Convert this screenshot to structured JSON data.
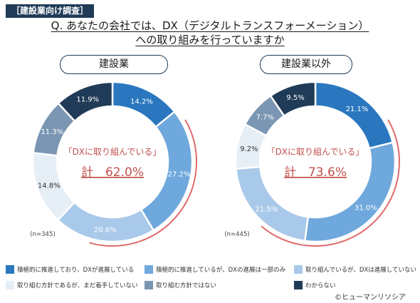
{
  "header": {
    "tag": "［建設業向け調査］",
    "question_line1": "Q. あなたの会社では、DX（デジタルトランスフォーメーション）",
    "question_line2": "への取り組みを行っていますか"
  },
  "chart_data": [
    {
      "type": "donut",
      "title": "建設業",
      "n_label": "(n=345)",
      "center_label": "「DXに取り組んでいる」",
      "center_total": "計　62.0%",
      "categories": [
        "積極的に推進しており、DXが進展している",
        "積極的に推進しているが、DXの進展は一部のみ",
        "取り組んでいるが、DXは進展していない",
        "取り組む方針であるが、まだ着手していない",
        "取り組む方針ではない",
        "わからない"
      ],
      "values": [
        14.2,
        27.2,
        20.6,
        14.8,
        11.3,
        11.9
      ],
      "value_labels": [
        "14.2%",
        "27.2%",
        "20.6%",
        "14.8%",
        "11.3%",
        "11.9%"
      ]
    },
    {
      "type": "donut",
      "title": "建設業以外",
      "n_label": "(n=445)",
      "center_label": "「DXに取り組んでいる」",
      "center_total": "計　73.6%",
      "categories": [
        "積極的に推進しており、DXが進展している",
        "積極的に推進しているが、DXの進展は一部のみ",
        "取り組んでいるが、DXは進展していない",
        "取り組む方針であるが、まだ着手していない",
        "取り組む方針ではない",
        "わからない"
      ],
      "values": [
        21.1,
        31.0,
        21.5,
        9.2,
        7.7,
        9.5
      ],
      "value_labels": [
        "21.1%",
        "31.0%",
        "21.5%",
        "9.2%",
        "7.7%",
        "9.5%"
      ]
    }
  ],
  "legend": [
    {
      "label": "積極的に推進しており、DXが進展している",
      "color": "#2a77bf"
    },
    {
      "label": "積極的に推進しているが、DXの進展は一部のみ",
      "color": "#6fa8dc"
    },
    {
      "label": "取り組んでいるが、DXは進展していない",
      "color": "#a9c9ea"
    },
    {
      "label": "取り組む方針であるが、まだ着手していない",
      "color": "#e6eef6"
    },
    {
      "label": "取り組む方針ではない",
      "color": "#7a96b2"
    },
    {
      "label": "わからない",
      "color": "#1f3b57"
    }
  ],
  "colors": {
    "segments": [
      "#2a77bf",
      "#6fa8dc",
      "#a9c9ea",
      "#e6eef6",
      "#7a96b2",
      "#1f3b57"
    ],
    "accent": "#e06a6a",
    "highlight_text": "#c0504d"
  },
  "footer": {
    "copyright": "©ヒューマンリソシア"
  }
}
